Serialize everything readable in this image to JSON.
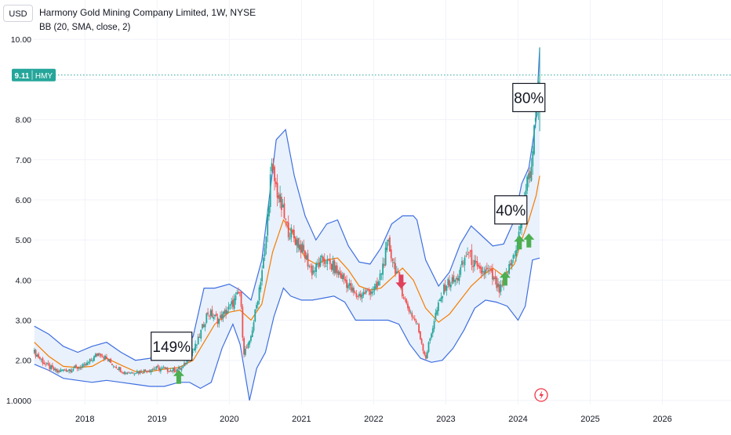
{
  "header": {
    "currency": "USD",
    "title": "Harmony Gold Mining Company Limited, 1W, NYSE",
    "indicator": "BB (20, SMA, close, 2)"
  },
  "price_tag": {
    "value": "9.11",
    "symbol": "HMY"
  },
  "annotations": [
    {
      "label": "149%",
      "x": 2019.2,
      "y": 2.35
    },
    {
      "label": "40%",
      "x": 2023.9,
      "y": 5.75
    },
    {
      "label": "80%",
      "x": 2024.15,
      "y": 8.55
    }
  ],
  "signals": [
    {
      "type": "buy",
      "x": 2019.3,
      "y": 1.55
    },
    {
      "type": "sell",
      "x": 2022.38,
      "y": 4.0
    },
    {
      "type": "buy",
      "x": 2023.82,
      "y": 4.0
    },
    {
      "type": "buy",
      "x": 2024.02,
      "y": 4.9
    },
    {
      "type": "buy",
      "x": 2024.15,
      "y": 4.95
    }
  ],
  "colors": {
    "up": "#26a69a",
    "down": "#ef5350",
    "band": "#3f6fe0",
    "band_fill": "#e3eefb",
    "basis": "#f57c00",
    "price_line": "#26a69a",
    "buy_arrow": "#4caf50",
    "sell_arrow": "#e0405a"
  },
  "icons": {
    "event_marker": "lightning-icon"
  },
  "chart_data": {
    "type": "candlestick",
    "title": "Harmony Gold Mining Company Limited, 1W, NYSE",
    "x_ticks": [
      "2018",
      "2019",
      "2020",
      "2021",
      "2022",
      "2023",
      "2024",
      "2025",
      "2026"
    ],
    "y_ticks": [
      "1.0000",
      "2.00",
      "3.00",
      "4.00",
      "5.00",
      "6.00",
      "7.00",
      "8.00",
      "9.00",
      "10.00"
    ],
    "ylim": [
      0.9,
      10.2
    ],
    "xlim": [
      2017.28,
      2026.95
    ],
    "last_price": 9.11,
    "grid": true,
    "price_path": [
      [
        2017.3,
        2.2
      ],
      [
        2017.45,
        1.9
      ],
      [
        2017.6,
        1.72
      ],
      [
        2017.8,
        1.78
      ],
      [
        2018.0,
        1.85
      ],
      [
        2018.2,
        2.2
      ],
      [
        2018.35,
        1.95
      ],
      [
        2018.55,
        1.7
      ],
      [
        2018.75,
        1.72
      ],
      [
        2019.0,
        1.8
      ],
      [
        2019.2,
        1.75
      ],
      [
        2019.35,
        1.8
      ],
      [
        2019.55,
        2.4
      ],
      [
        2019.7,
        3.2
      ],
      [
        2019.85,
        3.0
      ],
      [
        2020.0,
        3.3
      ],
      [
        2020.15,
        3.7
      ],
      [
        2020.2,
        2.2
      ],
      [
        2020.28,
        2.4
      ],
      [
        2020.38,
        3.4
      ],
      [
        2020.5,
        4.8
      ],
      [
        2020.58,
        6.8
      ],
      [
        2020.65,
        6.3
      ],
      [
        2020.8,
        5.3
      ],
      [
        2021.0,
        4.8
      ],
      [
        2021.15,
        4.2
      ],
      [
        2021.3,
        4.5
      ],
      [
        2021.45,
        4.3
      ],
      [
        2021.6,
        4.0
      ],
      [
        2021.75,
        3.6
      ],
      [
        2021.9,
        3.7
      ],
      [
        2022.05,
        3.8
      ],
      [
        2022.2,
        4.9
      ],
      [
        2022.35,
        4.0
      ],
      [
        2022.45,
        3.4
      ],
      [
        2022.6,
        2.9
      ],
      [
        2022.72,
        2.05
      ],
      [
        2022.85,
        3.1
      ],
      [
        2023.0,
        3.9
      ],
      [
        2023.15,
        4.0
      ],
      [
        2023.3,
        4.7
      ],
      [
        2023.45,
        4.2
      ],
      [
        2023.6,
        4.2
      ],
      [
        2023.75,
        3.7
      ],
      [
        2023.9,
        4.4
      ],
      [
        2024.0,
        5.0
      ],
      [
        2024.1,
        6.2
      ],
      [
        2024.18,
        6.8
      ],
      [
        2024.25,
        8.2
      ],
      [
        2024.3,
        9.11
      ]
    ],
    "series": [
      {
        "name": "Upper",
        "points": [
          [
            2017.3,
            2.85
          ],
          [
            2017.5,
            2.65
          ],
          [
            2017.7,
            2.35
          ],
          [
            2017.9,
            2.2
          ],
          [
            2018.1,
            2.35
          ],
          [
            2018.3,
            2.45
          ],
          [
            2018.5,
            2.2
          ],
          [
            2018.7,
            2.0
          ],
          [
            2018.9,
            2.05
          ],
          [
            2019.1,
            2.15
          ],
          [
            2019.3,
            2.05
          ],
          [
            2019.5,
            2.6
          ],
          [
            2019.65,
            3.8
          ],
          [
            2019.8,
            3.8
          ],
          [
            2020.0,
            3.9
          ],
          [
            2020.15,
            3.75
          ],
          [
            2020.3,
            3.5
          ],
          [
            2020.45,
            4.5
          ],
          [
            2020.55,
            6.0
          ],
          [
            2020.65,
            7.5
          ],
          [
            2020.78,
            7.75
          ],
          [
            2020.9,
            6.6
          ],
          [
            2021.05,
            5.6
          ],
          [
            2021.2,
            5.0
          ],
          [
            2021.35,
            5.4
          ],
          [
            2021.5,
            5.5
          ],
          [
            2021.65,
            4.85
          ],
          [
            2021.8,
            4.45
          ],
          [
            2021.95,
            4.4
          ],
          [
            2022.1,
            4.8
          ],
          [
            2022.25,
            5.4
          ],
          [
            2022.4,
            5.6
          ],
          [
            2022.55,
            5.6
          ],
          [
            2022.6,
            5.5
          ],
          [
            2022.72,
            4.5
          ],
          [
            2022.9,
            3.85
          ],
          [
            2023.05,
            4.2
          ],
          [
            2023.2,
            4.9
          ],
          [
            2023.35,
            5.35
          ],
          [
            2023.5,
            5.1
          ],
          [
            2023.65,
            4.85
          ],
          [
            2023.8,
            4.9
          ],
          [
            2023.95,
            5.5
          ],
          [
            2024.05,
            6.4
          ],
          [
            2024.15,
            6.8
          ],
          [
            2024.25,
            8.0
          ],
          [
            2024.3,
            9.8
          ]
        ]
      },
      {
        "name": "Basis",
        "points": [
          [
            2017.3,
            2.45
          ],
          [
            2017.5,
            2.1
          ],
          [
            2017.7,
            1.85
          ],
          [
            2017.9,
            1.82
          ],
          [
            2018.1,
            1.85
          ],
          [
            2018.3,
            2.05
          ],
          [
            2018.5,
            1.88
          ],
          [
            2018.7,
            1.72
          ],
          [
            2018.9,
            1.72
          ],
          [
            2019.1,
            1.78
          ],
          [
            2019.3,
            1.82
          ],
          [
            2019.5,
            2.0
          ],
          [
            2019.65,
            2.45
          ],
          [
            2019.8,
            2.9
          ],
          [
            2020.0,
            3.2
          ],
          [
            2020.15,
            3.25
          ],
          [
            2020.3,
            3.0
          ],
          [
            2020.45,
            3.4
          ],
          [
            2020.6,
            4.7
          ],
          [
            2020.75,
            5.5
          ],
          [
            2020.9,
            5.1
          ],
          [
            2021.05,
            4.55
          ],
          [
            2021.2,
            4.4
          ],
          [
            2021.35,
            4.5
          ],
          [
            2021.5,
            4.55
          ],
          [
            2021.65,
            4.25
          ],
          [
            2021.8,
            3.85
          ],
          [
            2021.95,
            3.75
          ],
          [
            2022.1,
            3.8
          ],
          [
            2022.25,
            4.05
          ],
          [
            2022.4,
            4.3
          ],
          [
            2022.55,
            4.0
          ],
          [
            2022.72,
            3.3
          ],
          [
            2022.9,
            2.95
          ],
          [
            2023.05,
            3.15
          ],
          [
            2023.2,
            3.5
          ],
          [
            2023.35,
            3.85
          ],
          [
            2023.5,
            4.1
          ],
          [
            2023.65,
            4.3
          ],
          [
            2023.8,
            4.1
          ],
          [
            2023.95,
            4.4
          ],
          [
            2024.05,
            5.0
          ],
          [
            2024.15,
            5.5
          ],
          [
            2024.25,
            6.1
          ],
          [
            2024.3,
            6.6
          ]
        ]
      },
      {
        "name": "Lower",
        "points": [
          [
            2017.3,
            1.9
          ],
          [
            2017.5,
            1.75
          ],
          [
            2017.7,
            1.55
          ],
          [
            2017.9,
            1.5
          ],
          [
            2018.1,
            1.45
          ],
          [
            2018.3,
            1.5
          ],
          [
            2018.5,
            1.45
          ],
          [
            2018.7,
            1.4
          ],
          [
            2018.9,
            1.35
          ],
          [
            2019.1,
            1.35
          ],
          [
            2019.3,
            1.45
          ],
          [
            2019.45,
            1.45
          ],
          [
            2019.6,
            1.3
          ],
          [
            2019.75,
            1.45
          ],
          [
            2019.9,
            2.3
          ],
          [
            2020.05,
            2.9
          ],
          [
            2020.15,
            2.4
          ],
          [
            2020.28,
            1.0
          ],
          [
            2020.38,
            1.8
          ],
          [
            2020.5,
            2.2
          ],
          [
            2020.62,
            3.1
          ],
          [
            2020.75,
            3.8
          ],
          [
            2020.85,
            3.6
          ],
          [
            2021.0,
            3.5
          ],
          [
            2021.15,
            3.5
          ],
          [
            2021.3,
            3.55
          ],
          [
            2021.45,
            3.6
          ],
          [
            2021.6,
            3.45
          ],
          [
            2021.75,
            3.0
          ],
          [
            2021.9,
            3.0
          ],
          [
            2022.05,
            3.0
          ],
          [
            2022.2,
            3.0
          ],
          [
            2022.35,
            2.9
          ],
          [
            2022.5,
            2.4
          ],
          [
            2022.65,
            2.05
          ],
          [
            2022.8,
            1.95
          ],
          [
            2022.95,
            2.0
          ],
          [
            2023.1,
            2.3
          ],
          [
            2023.25,
            2.75
          ],
          [
            2023.4,
            3.3
          ],
          [
            2023.55,
            3.5
          ],
          [
            2023.7,
            3.45
          ],
          [
            2023.85,
            3.35
          ],
          [
            2024.0,
            3.0
          ],
          [
            2024.1,
            3.35
          ],
          [
            2024.2,
            4.5
          ],
          [
            2024.3,
            4.55
          ]
        ]
      }
    ]
  }
}
